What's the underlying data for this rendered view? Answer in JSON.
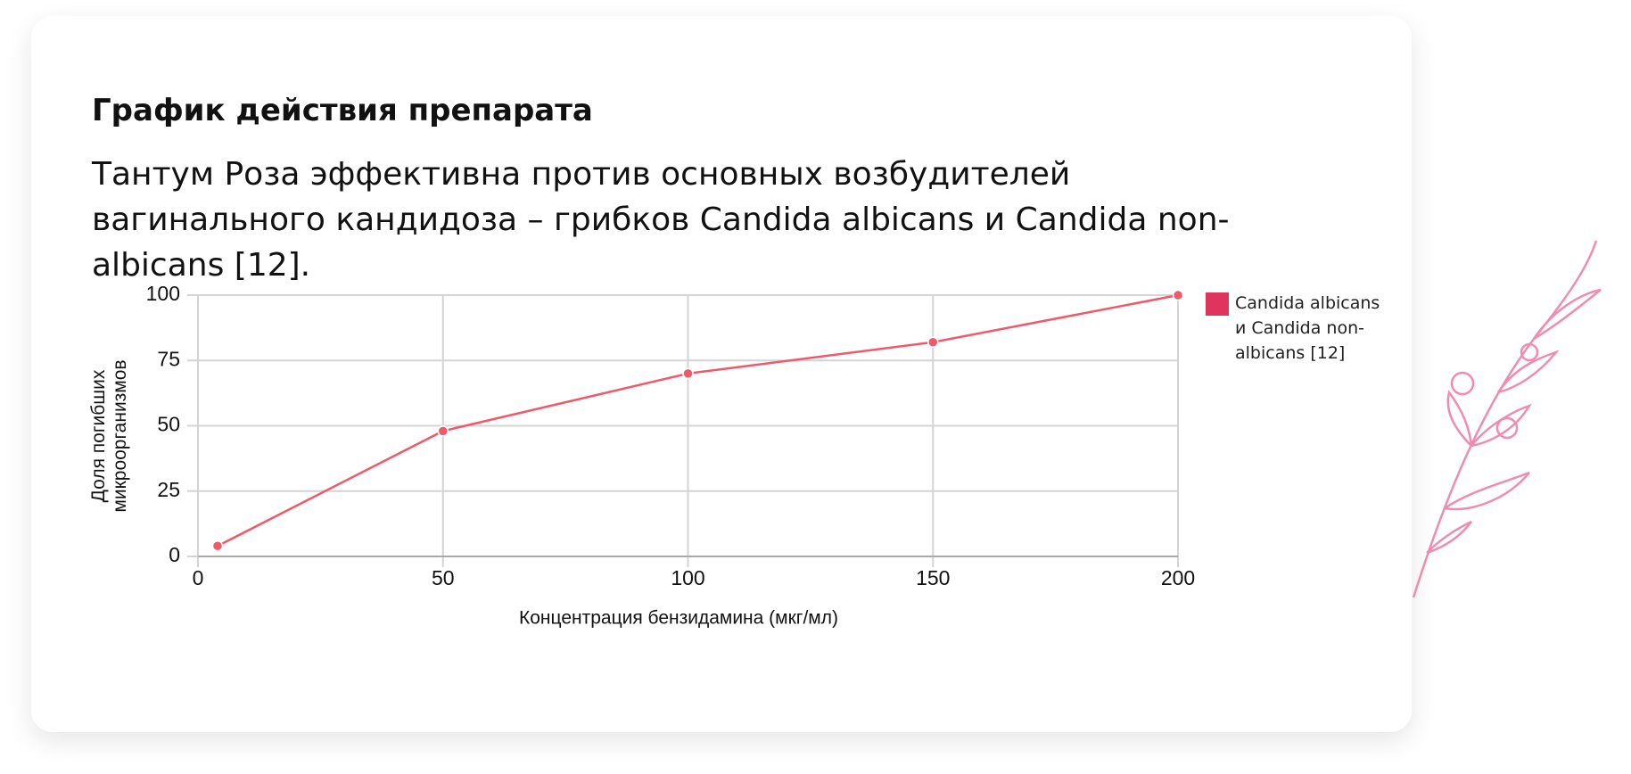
{
  "title": "График действия препарата",
  "subtitle": "Тантум Роза эффективна против основных возбудителей вагинального кандидоза – грибков Candida albicans и Candida non-albicans [12].",
  "chart_data": {
    "type": "line",
    "x": [
      4,
      50,
      100,
      150,
      200
    ],
    "series": [
      {
        "name": "Candida albicans и Candida non-albicans [12]",
        "color": "#ef5a6a",
        "values": [
          4,
          48,
          70,
          82,
          100
        ]
      }
    ],
    "legend_color": "#e0335e",
    "xlabel": "Концентрация бензидамина (мкг/мл)",
    "ylabel": "Доля погибших микроорганизмов",
    "xlim": [
      0,
      200
    ],
    "xticks": [
      0,
      50,
      100,
      150,
      200
    ],
    "ylim": [
      0,
      100
    ],
    "yticks": [
      0,
      25,
      50,
      75,
      100
    ],
    "grid": true,
    "legend": "right"
  }
}
